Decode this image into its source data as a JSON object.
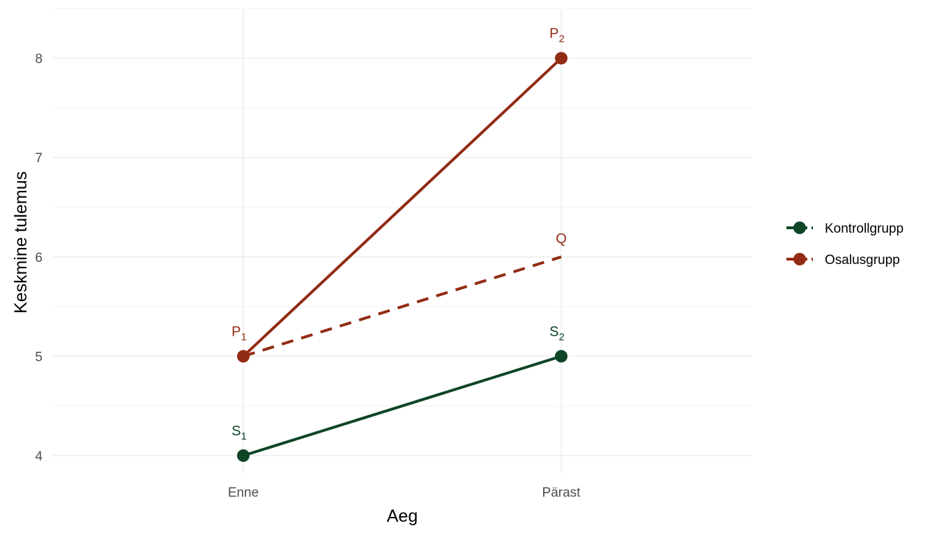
{
  "chart_data": {
    "type": "line",
    "xlabel": "Aeg",
    "ylabel": "Keskmine tulemus",
    "categories": [
      "Enne",
      "Pärast"
    ],
    "ylim": [
      3.8,
      8.5
    ],
    "yticks": [
      4,
      5,
      6,
      7,
      8
    ],
    "grid": true,
    "legend_position": "right",
    "series": [
      {
        "name": "Kontrollgrupp",
        "values": [
          4,
          5
        ],
        "color": "#0d4526",
        "linestyle": "solid",
        "point_labels": [
          {
            "base": "S",
            "sub": "1"
          },
          {
            "base": "S",
            "sub": "2"
          }
        ]
      },
      {
        "name": "Osalusgrupp",
        "values": [
          5,
          8
        ],
        "color": "#922b13",
        "linestyle": "solid",
        "point_labels": [
          {
            "base": "P",
            "sub": "1"
          },
          {
            "base": "P",
            "sub": "2"
          }
        ]
      }
    ],
    "counterfactual": {
      "series": "Osalusgrupp",
      "linestyle": "dashed",
      "values": [
        5,
        6
      ],
      "end_label": "Q"
    }
  }
}
